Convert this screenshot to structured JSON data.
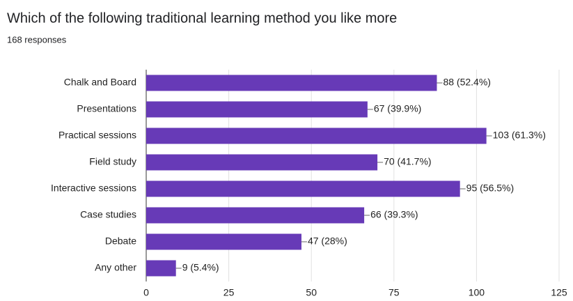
{
  "chart_data": {
    "type": "bar",
    "title": "Which of the following traditional learning method you like more",
    "subtitle": "168 responses",
    "categories": [
      "Chalk and Board",
      "Presentations",
      "Practical sessions",
      "Field study",
      "Interactive sessions",
      "Case studies",
      "Debate",
      "Any other"
    ],
    "values": [
      88,
      67,
      103,
      70,
      95,
      66,
      47,
      9
    ],
    "value_labels": [
      "88 (52.4%)",
      "67 (39.9%)",
      "103 (61.3%)",
      "70 (41.7%)",
      "95 (56.5%)",
      "66 (39.3%)",
      "47 (28%)",
      "9 (5.4%)"
    ],
    "color": "#673ab7",
    "xlim": [
      0,
      125
    ],
    "xticks": [
      0,
      25,
      50,
      75,
      100,
      125
    ],
    "grid": true
  }
}
